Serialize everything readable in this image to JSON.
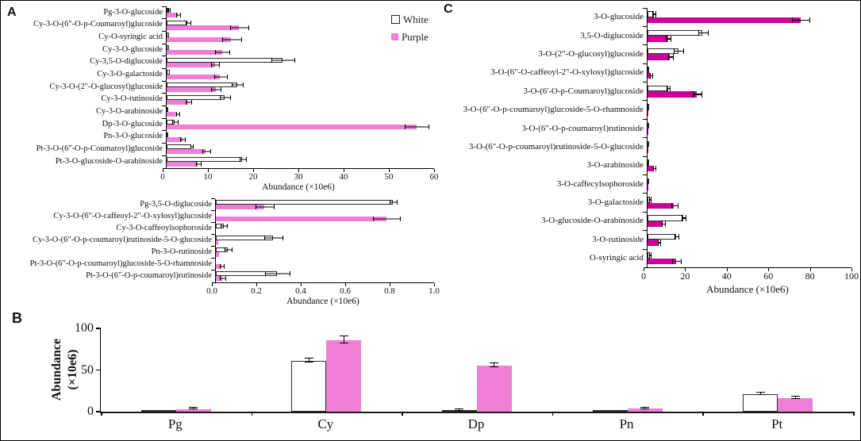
{
  "figure": {
    "panel_letters": {
      "a": "A",
      "b": "B",
      "c": "C"
    },
    "legend": {
      "position": "top-right-of-panel-A",
      "items": [
        {
          "label": "White",
          "color": "#ffffff",
          "border": "#222222"
        },
        {
          "label": "Purple",
          "color": "#ee7fd4"
        }
      ]
    }
  },
  "colors": {
    "pink_bar": "#ee7fd4",
    "magenta_bar": "#cc0099",
    "white_bar": "#ffffff",
    "bar_border": "#2b2b2b",
    "axis": "#000000"
  },
  "chart_data": [
    {
      "id": "panel_a_top",
      "type": "bar",
      "orientation": "horizontal",
      "xlabel": "Abundance (×10e6)",
      "xlim": [
        0,
        60
      ],
      "xtick_labels": [
        "0",
        "10",
        "20",
        "30",
        "40",
        "50",
        "60"
      ],
      "grid": false,
      "bar_color": "#ee7fd4",
      "categories": [
        "Pg-3-O-glucoside",
        "Cy-3-O-(6\"-O-p-Coumaroyl)glucoside",
        "Cy-O-syringic acid",
        "Cy-3-O-glucoside",
        "Cy-3,5-O-diglucoside",
        "Cy-3-O-galactoside",
        "Cy-3-O-(2\"-O-glucosyl)glucoside",
        "Cy-3-O-rutinoside",
        "Cy-3-O-arabinoside",
        "Dp-3-O-glucoside",
        "Pn-3-O-glucoside",
        "Pt-3-O-(6\"-O-p-Coumaroyl)glucoside",
        "Pt-3-O-glucoside-O-arabinoside"
      ],
      "series": [
        {
          "name": "White",
          "values": [
            0.4,
            4.7,
            0.6,
            0.6,
            26,
            0.8,
            15.8,
            13,
            0.3,
            1.8,
            0.3,
            5.5,
            17
          ],
          "errors": [
            0.1,
            0.4,
            0,
            0,
            2.5,
            0,
            1.2,
            1,
            0,
            0.5,
            0,
            0.2,
            0.6
          ]
        },
        {
          "name": "Purple",
          "values": [
            2.5,
            16.2,
            14.5,
            12.4,
            10.8,
            12,
            11,
            4.8,
            2.4,
            56,
            3.5,
            8.8,
            7
          ],
          "errors": [
            0.3,
            2,
            2,
            1.5,
            0.8,
            1.3,
            1,
            0.5,
            0.3,
            2.5,
            0.4,
            0.8,
            0.5
          ]
        }
      ]
    },
    {
      "id": "panel_a_bottom",
      "type": "bar",
      "orientation": "horizontal",
      "xlabel": "Abundance (×10e6)",
      "xlim": [
        0,
        1.0
      ],
      "xtick_labels": [
        "0.0",
        "0.2",
        "0.4",
        "0.6",
        "0.8",
        "1.0"
      ],
      "grid": false,
      "bar_color": "#ee7fd4",
      "categories": [
        "Pg-3,5-O-diglucoside",
        "Cy-3-O-(6\"-O-caffeoyl-2\"-O-xylosyl)glucoside",
        "Cy-3-O-caffeoylsophoroside",
        "Cy-3-O-(6\"-O-p-coumaroyl)rutinoside-5-O-glucoside",
        "Pn-3-O-rutinoside",
        "Pt-3-O-(6\"-O-p-coumaroyl)glucoside-5-O-rhamnoside",
        "Pt-3-O-(6\"-O-p-coumaroyl)rutinoside"
      ],
      "series": [
        {
          "name": "White",
          "values": [
            0.81,
            0,
            0.035,
            0.26,
            0.055,
            0,
            0.28
          ],
          "errors": [
            0.015,
            0,
            0.012,
            0.04,
            0.015,
            0,
            0.055
          ]
        },
        {
          "name": "Purple",
          "values": [
            0.22,
            0.78,
            0,
            0.01,
            0.015,
            0.025,
            0.03
          ],
          "errors": [
            0.04,
            0.06,
            0,
            0,
            0,
            0.008,
            0.01
          ]
        }
      ]
    },
    {
      "id": "panel_b",
      "type": "bar",
      "orientation": "vertical",
      "ylabel": "Abundance (×10e6)",
      "ylim": [
        0,
        100
      ],
      "ytick_labels": [
        "0",
        "50",
        "100"
      ],
      "yticks": [
        0,
        50,
        100
      ],
      "grid": false,
      "bar_color": "#ee7fd4",
      "categories": [
        "Pg",
        "Cy",
        "Dp",
        "Pn",
        "Pt"
      ],
      "series": [
        {
          "name": "White",
          "values": [
            0.6,
            61,
            1.5,
            0.6,
            21
          ],
          "errors": [
            0,
            2,
            0.3,
            0,
            0.8
          ]
        },
        {
          "name": "Purple",
          "values": [
            3,
            86,
            55,
            3.5,
            16
          ],
          "errors": [
            0.5,
            4,
            2,
            0.4,
            0.8
          ]
        }
      ]
    },
    {
      "id": "panel_c",
      "type": "bar",
      "orientation": "horizontal",
      "xlabel": "Abundance (×10e6)",
      "xlim": [
        0,
        100
      ],
      "xtick_labels": [
        "0",
        "20",
        "40",
        "60",
        "80",
        "100"
      ],
      "grid": false,
      "bar_color": "#cc0099",
      "categories": [
        "3-O-glucoside",
        "3,5-O-diglucoside",
        "3-O-(2\"-O-glucosyl)glucoside",
        "3-O-(6\"-O-caffeoyl-2\"-O-xylosyl)glucoside",
        "3-O-(6'-O-p-Coumaroyl)glucoside",
        "3-O-(6\"-O-p-coumaroyl)glucoside-5-O-rhamnoside",
        "3-O-(6\"-O-p-coumaroyl)rutinoside",
        "3-O-(6\"-O-p-coumaroyl)rutinoside-5-O-glucoside",
        "3-O-arabinoside",
        "3-O-caffecylsophoroside",
        "3-O-galactoside",
        "3-O-glucoside-O-arabinoside",
        "3-O-rutinoside",
        "O-syringic acid"
      ],
      "series": [
        {
          "name": "White",
          "values": [
            3,
            27,
            15,
            0.3,
            10,
            0.4,
            0.4,
            0.5,
            0.3,
            0.4,
            1,
            17.5,
            14,
            1
          ],
          "errors": [
            0.5,
            2,
            2,
            0,
            0.5,
            0,
            0,
            0,
            0,
            0,
            0.2,
            0.8,
            0.6,
            0.2
          ]
        },
        {
          "name": "Purple",
          "values": [
            75,
            10,
            11,
            1.5,
            24,
            0.2,
            0.2,
            0.2,
            3,
            0.2,
            13,
            7.5,
            5.5,
            14
          ],
          "errors": [
            4,
            1,
            1,
            0.3,
            2,
            0,
            0,
            0,
            0.4,
            0,
            1.5,
            0.6,
            0.5,
            2
          ]
        }
      ]
    }
  ]
}
